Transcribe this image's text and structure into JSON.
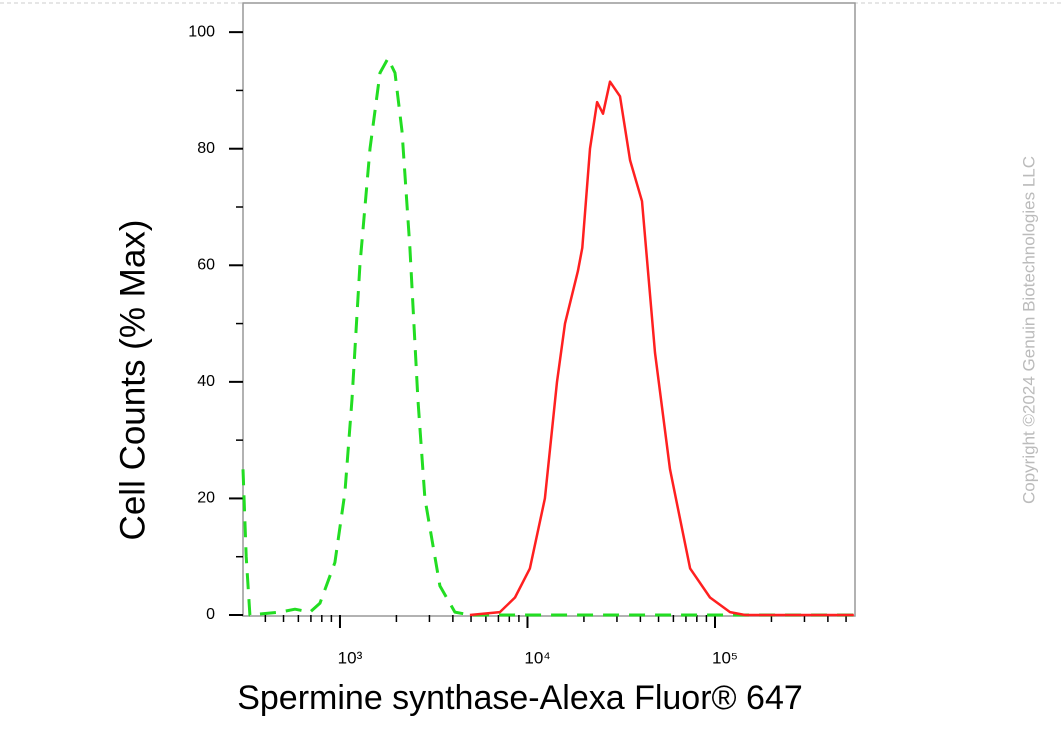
{
  "chart_data": {
    "type": "line",
    "xlabel": "Spermine synthase-Alexa Fluor® 647",
    "ylabel": "Cell Counts (% Max)",
    "watermark": "Copyright ©2024 Genuin Biotechnologies LLC",
    "xscale": "log",
    "xlim": [
      304,
      558000
    ],
    "ylim": [
      0,
      105
    ],
    "xticks": [
      {
        "value": 1000,
        "label": "10³"
      },
      {
        "value": 10000,
        "label": "10⁴"
      },
      {
        "value": 100000,
        "label": "10⁵"
      }
    ],
    "xminorticks": [
      400,
      500,
      600,
      700,
      800,
      900,
      2000,
      3000,
      4000,
      5000,
      6000,
      7000,
      8000,
      9000,
      20000,
      30000,
      40000,
      50000,
      60000,
      70000,
      80000,
      90000,
      200000,
      300000,
      400000,
      500000
    ],
    "yticks": [
      0,
      20,
      40,
      60,
      80,
      100
    ],
    "yminorticks": [
      10,
      30,
      50,
      70,
      90
    ],
    "series": [
      {
        "color": "#22dd22",
        "style": "dashed",
        "x": [
          304,
          316,
          331,
          479,
          576,
          692,
          782,
          940,
          1063,
          1159,
          1278,
          1446,
          1635,
          1803,
          1965,
          2142,
          2361,
          2604,
          2839,
          3412,
          4103,
          4933,
          550000
        ],
        "values": [
          25,
          10,
          0,
          0.5,
          1,
          0.5,
          2,
          9,
          21,
          37,
          60,
          80,
          93,
          95.5,
          93,
          83,
          63,
          37,
          20,
          5,
          0.5,
          0,
          0
        ]
      },
      {
        "color": "#ff2020",
        "style": "solid",
        "x": [
          4933,
          7129,
          8577,
          10300,
          12390,
          14360,
          15850,
          18580,
          19600,
          21540,
          23500,
          25290,
          27540,
          31130,
          35240,
          40820,
          47860,
          57540,
          73620,
          94000,
          120200,
          144500,
          550000
        ],
        "values": [
          0,
          0.5,
          3,
          8,
          20,
          40,
          50,
          59,
          63,
          80,
          88,
          86,
          91.5,
          89,
          78,
          71,
          45,
          25,
          8,
          3,
          0.5,
          0,
          0
        ]
      }
    ]
  }
}
